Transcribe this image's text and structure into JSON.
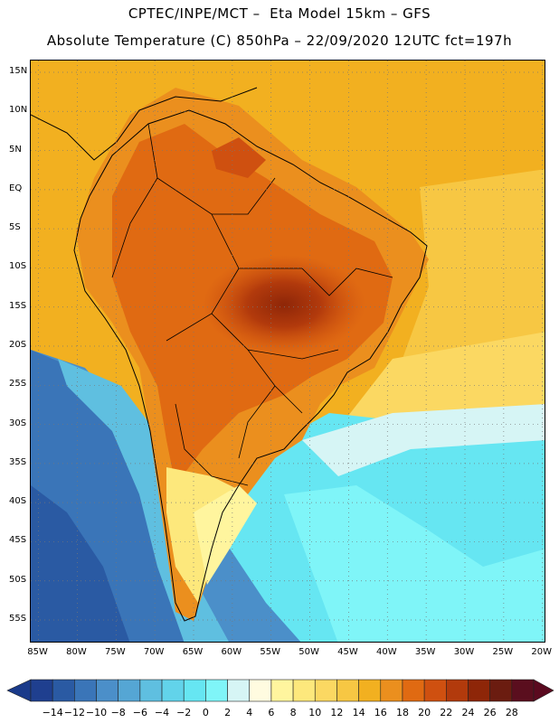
{
  "header": {
    "line1": "CPTEC/INPE/MCT –  Eta Model 15km – GFS",
    "line2": "Absolute Temperature (C) 850hPa – 22/09/2020 12UTC fct=197h"
  },
  "map": {
    "lat_labels": [
      "15N",
      "10N",
      "5N",
      "EQ",
      "5S",
      "10S",
      "15S",
      "20S",
      "25S",
      "30S",
      "35S",
      "40S",
      "45S",
      "50S",
      "55S"
    ],
    "lon_labels": [
      "85W",
      "80W",
      "75W",
      "70W",
      "65W",
      "60W",
      "55W",
      "50W",
      "45W",
      "40W",
      "35W",
      "30W",
      "25W",
      "20W"
    ],
    "lat_values": [
      15,
      10,
      5,
      0,
      -5,
      -10,
      -15,
      -20,
      -25,
      -30,
      -35,
      -40,
      -45,
      -50,
      -55
    ],
    "lon_values": [
      -85,
      -80,
      -75,
      -70,
      -65,
      -60,
      -55,
      -50,
      -45,
      -40,
      -35,
      -30,
      -25,
      -20
    ],
    "extent": {
      "lon_min": -86,
      "lon_max": -19.5,
      "lat_min": -58,
      "lat_max": 16.5
    },
    "gridlines": "dotted"
  },
  "colorbar": {
    "labels": [
      "-14",
      "-12",
      "-10",
      "-8",
      "-6",
      "-4",
      "-2",
      "0",
      "2",
      "4",
      "6",
      "8",
      "10",
      "12",
      "14",
      "16",
      "18",
      "20",
      "22",
      "24",
      "26",
      "28"
    ],
    "colors": [
      "#1f3f8f",
      "#2a5aa3",
      "#3a75b8",
      "#4b8fc9",
      "#55a6d4",
      "#5fbfe0",
      "#62d3ea",
      "#66e6f2",
      "#7ff5f8",
      "#d6f5f5",
      "#fffbe0",
      "#fff59e",
      "#fde87c",
      "#fbd862",
      "#f7c743",
      "#f2b020",
      "#eb8f1e",
      "#e06a12",
      "#cf5010",
      "#b23a0c",
      "#8e2608",
      "#6b1c10",
      "#5a0e1e"
    ],
    "low_arrow_color": "#1a3a8a",
    "high_arrow_color": "#5a0a1f"
  }
}
